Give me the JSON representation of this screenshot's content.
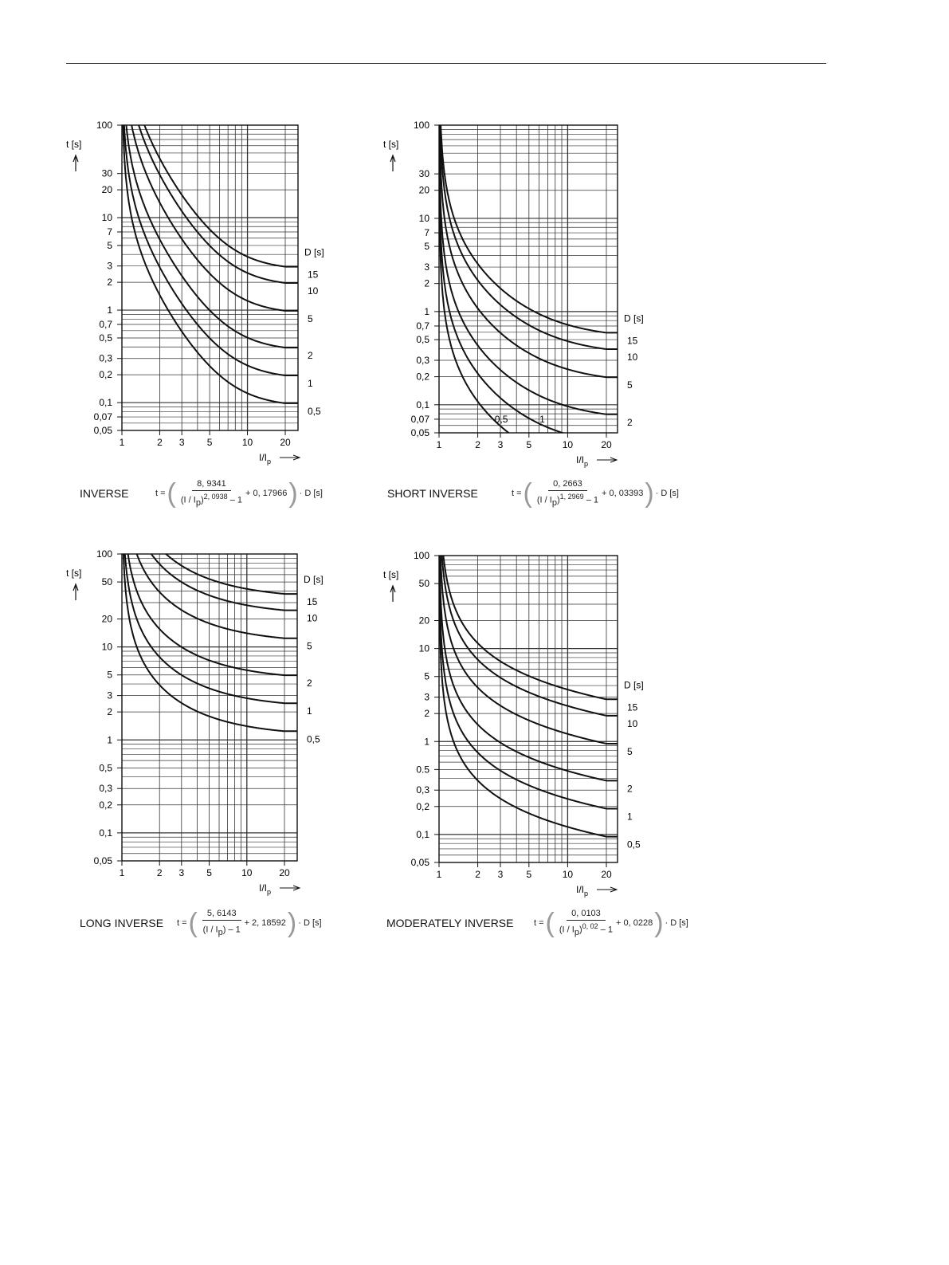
{
  "colors": {
    "ink": "#111111",
    "grid": "#444444"
  },
  "chart_data": [
    {
      "type": "line",
      "title": "INVERSE",
      "formula": {
        "lhs": "t =",
        "numerator": "8, 9341",
        "den_base": "(I / I",
        "den_sub": "p",
        "den_close": ")",
        "exponent": "2, 0938",
        "den_tail": "– 1",
        "tail": "+ 0, 17966",
        "d": "· D [s]"
      },
      "params": {
        "k": 8.9341,
        "alpha": 2.0938,
        "c": 0.17966
      },
      "xlabel": "I/I",
      "xlabel_sub": "p",
      "ylabel": "t [s]",
      "legend_title": "D [s]",
      "xlim": [
        1,
        20
      ],
      "ylim": [
        0.05,
        100
      ],
      "xticks": [
        "1",
        "2",
        "3",
        "5",
        "10",
        "20"
      ],
      "xtick_values": [
        1,
        2,
        3,
        5,
        10,
        20
      ],
      "yticks": [
        "100",
        "30",
        "20",
        "10",
        "7",
        "5",
        "3",
        "2",
        "1",
        "0,7",
        "0,5",
        "0,3",
        "0,2",
        "0,1",
        "0,07",
        "0,05"
      ],
      "ytick_values": [
        100,
        30,
        20,
        10,
        7,
        5,
        3,
        2,
        1,
        0.7,
        0.5,
        0.3,
        0.2,
        0.1,
        0.07,
        0.05
      ],
      "series": [
        {
          "name": "15",
          "D": 15
        },
        {
          "name": "10",
          "D": 10
        },
        {
          "name": "5",
          "D": 5
        },
        {
          "name": "2",
          "D": 2
        },
        {
          "name": "1",
          "D": 1
        },
        {
          "name": "0,5",
          "D": 0.5
        }
      ]
    },
    {
      "type": "line",
      "title": "SHORT INVERSE",
      "formula": {
        "lhs": "t =",
        "numerator": "0, 2663",
        "den_base": "(I / I",
        "den_sub": "p",
        "den_close": ")",
        "exponent": "1, 2969",
        "den_tail": "– 1",
        "tail": "+ 0, 03393",
        "d": "· D [s]"
      },
      "params": {
        "k": 0.2663,
        "alpha": 1.2969,
        "c": 0.03393
      },
      "xlabel": "I/I",
      "xlabel_sub": "p",
      "ylabel": "t [s]",
      "legend_title": "D [s]",
      "xlim": [
        1,
        20
      ],
      "ylim": [
        0.05,
        100
      ],
      "xticks": [
        "1",
        "2",
        "3",
        "5",
        "10",
        "20"
      ],
      "xtick_values": [
        1,
        2,
        3,
        5,
        10,
        20
      ],
      "yticks": [
        "100",
        "30",
        "20",
        "10",
        "7",
        "5",
        "3",
        "2",
        "1",
        "0,7",
        "0,5",
        "0,3",
        "0,2",
        "0,1",
        "0,07",
        "0,05"
      ],
      "ytick_values": [
        100,
        30,
        20,
        10,
        7,
        5,
        3,
        2,
        1,
        0.7,
        0.5,
        0.3,
        0.2,
        0.1,
        0.07,
        0.05
      ],
      "series": [
        {
          "name": "15",
          "D": 15
        },
        {
          "name": "10",
          "D": 10
        },
        {
          "name": "5",
          "D": 5
        },
        {
          "name": "2",
          "D": 2
        },
        {
          "name": "1",
          "D": 1
        },
        {
          "name": "0,5",
          "D": 0.5
        }
      ]
    },
    {
      "type": "line",
      "title": "LONG INVERSE",
      "formula": {
        "lhs": "t =",
        "numerator": "5, 6143",
        "den_base": "(I / I",
        "den_sub": "p",
        "den_close": ")",
        "exponent": "",
        "den_tail": "– 1",
        "tail": "+ 2, 18592",
        "d": "· D [s]"
      },
      "params": {
        "k": 5.6143,
        "alpha": 1,
        "c": 2.18592
      },
      "xlabel": "I/I",
      "xlabel_sub": "p",
      "ylabel": "t [s]",
      "legend_title": "D [s]",
      "xlim": [
        1,
        20
      ],
      "ylim": [
        0.05,
        100
      ],
      "xticks": [
        "1",
        "2",
        "3",
        "5",
        "10",
        "20"
      ],
      "xtick_values": [
        1,
        2,
        3,
        5,
        10,
        20
      ],
      "yticks": [
        "100",
        "50",
        "20",
        "10",
        "5",
        "3",
        "2",
        "1",
        "0,5",
        "0,3",
        "0,2",
        "0,1",
        "0,05"
      ],
      "ytick_values": [
        100,
        50,
        20,
        10,
        5,
        3,
        2,
        1,
        0.5,
        0.3,
        0.2,
        0.1,
        0.05
      ],
      "series": [
        {
          "name": "15",
          "D": 15
        },
        {
          "name": "10",
          "D": 10
        },
        {
          "name": "5",
          "D": 5
        },
        {
          "name": "2",
          "D": 2
        },
        {
          "name": "1",
          "D": 1
        },
        {
          "name": "0,5",
          "D": 0.5
        }
      ]
    },
    {
      "type": "line",
      "title": "MODERATELY INVERSE",
      "formula": {
        "lhs": "t =",
        "numerator": "0, 0103",
        "den_base": "(I / I",
        "den_sub": "p",
        "den_close": ")",
        "exponent": "0, 02",
        "den_tail": "– 1",
        "tail": "+ 0, 0228",
        "d": "· D [s]"
      },
      "params": {
        "k": 0.0103,
        "alpha": 0.02,
        "c": 0.0228
      },
      "xlabel": "I/I",
      "xlabel_sub": "p",
      "ylabel": "t [s]",
      "legend_title": "D [s]",
      "xlim": [
        1,
        20
      ],
      "ylim": [
        0.05,
        100
      ],
      "xticks": [
        "1",
        "2",
        "3",
        "5",
        "10",
        "20"
      ],
      "xtick_values": [
        1,
        2,
        3,
        5,
        10,
        20
      ],
      "yticks": [
        "100",
        "50",
        "20",
        "10",
        "5",
        "3",
        "2",
        "1",
        "0.5",
        "0,3",
        "0,2",
        "0,1",
        "0,05"
      ],
      "ytick_values": [
        100,
        50,
        20,
        10,
        5,
        3,
        2,
        1,
        0.5,
        0.3,
        0.2,
        0.1,
        0.05
      ],
      "series": [
        {
          "name": "15",
          "D": 15
        },
        {
          "name": "10",
          "D": 10
        },
        {
          "name": "5",
          "D": 5
        },
        {
          "name": "2",
          "D": 2
        },
        {
          "name": "1",
          "D": 1
        },
        {
          "name": "0,5",
          "D": 0.5
        }
      ]
    }
  ]
}
